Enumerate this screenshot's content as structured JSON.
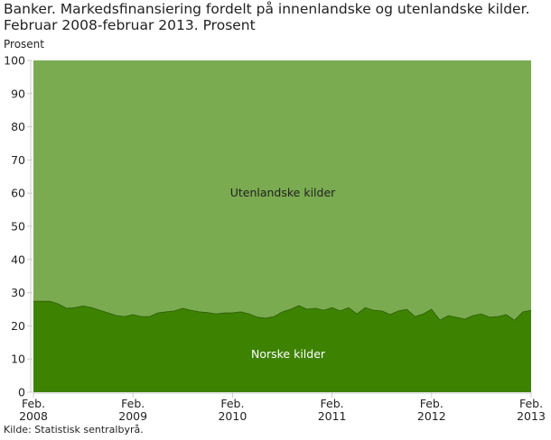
{
  "chart_data": {
    "type": "area",
    "stacked": true,
    "title": "Banker. Markedsfinansiering fordelt på innenlandske og utenlandske kilder. Februar 2008-februar 2013. Prosent",
    "ylabel": "Prosent",
    "xlabel": "",
    "ylim": [
      0,
      100
    ],
    "yticks": [
      0,
      10,
      20,
      30,
      40,
      50,
      60,
      70,
      80,
      90,
      100
    ],
    "xticks": [
      {
        "index": 0,
        "line1": "Feb.",
        "line2": "2008"
      },
      {
        "index": 12,
        "line1": "Feb.",
        "line2": "2009"
      },
      {
        "index": 24,
        "line1": "Feb.",
        "line2": "2010"
      },
      {
        "index": 36,
        "line1": "Feb.",
        "line2": "2011"
      },
      {
        "index": 48,
        "line1": "Feb.",
        "line2": "2012"
      },
      {
        "index": 60,
        "line1": "Feb.",
        "line2": "2013"
      }
    ],
    "x_range": "Feb. 2008 - Feb. 2013 (monthly)",
    "grid": false,
    "series": [
      {
        "name": "Norske kilder",
        "color": "#3d8200",
        "values": [
          27.4,
          27.4,
          27.4,
          26.6,
          25.3,
          25.5,
          26.0,
          25.5,
          24.7,
          23.9,
          23.1,
          22.8,
          23.4,
          22.8,
          22.8,
          23.9,
          24.2,
          24.5,
          25.3,
          24.7,
          24.2,
          24.0,
          23.6,
          23.9,
          23.9,
          24.2,
          23.6,
          22.6,
          22.3,
          22.8,
          24.2,
          25.0,
          26.1,
          25.0,
          25.3,
          24.7,
          25.5,
          24.5,
          25.5,
          23.6,
          25.5,
          24.7,
          24.5,
          23.4,
          24.5,
          25.0,
          22.8,
          23.6,
          25.0,
          21.7,
          23.1,
          22.6,
          22.0,
          23.1,
          23.6,
          22.6,
          22.8,
          23.4,
          21.7,
          24.2,
          24.7
        ]
      },
      {
        "name": "Utenlandske kilder",
        "color": "#7aab50",
        "note_stacked_to": 100
      }
    ]
  },
  "source": "Kilde: Statistisk sentralbyrå."
}
